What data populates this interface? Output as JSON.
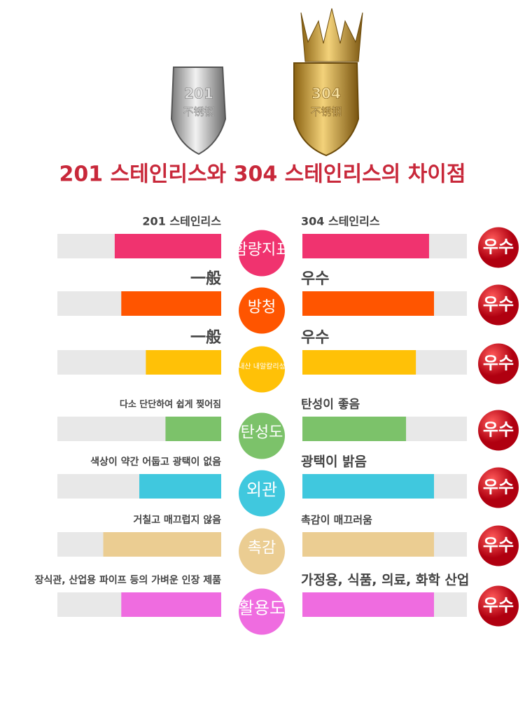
{
  "shields": [
    {
      "number": "201",
      "text": "不锈钢"
    },
    {
      "number": "304",
      "text": "不锈钢"
    }
  ],
  "title": "201 스테인리스와 304 스테인리스의 차이점",
  "rows": [
    {
      "label": "함량지표",
      "left_text": "201 스테인리스",
      "right_text": "304 스테인리스",
      "left_value": 65,
      "right_value": 77,
      "color": "#f0336f",
      "badge": "우수"
    },
    {
      "label": "방청",
      "left_text": "一般",
      "right_text": "우수",
      "left_value": 61,
      "right_value": 80,
      "color": "#ff5500",
      "badge": "우수"
    },
    {
      "label": "내산 내알칼리성",
      "left_text": "一般",
      "right_text": "우수",
      "left_value": 46,
      "right_value": 69,
      "color": "#ffc107",
      "badge": "우수"
    },
    {
      "label": "탄성도",
      "left_text": "다소 단단하여 쉽게 찢어짐",
      "right_text": "탄성이 좋음",
      "left_value": 34,
      "right_value": 63,
      "color": "#7cc26a",
      "badge": "우수"
    },
    {
      "label": "외관",
      "left_text": "색상이 약간 어둡고 광택이 없음",
      "right_text": "광택이 밝음",
      "left_value": 50,
      "right_value": 80,
      "color": "#40c8de",
      "badge": "우수"
    },
    {
      "label": "촉감",
      "left_text": "거칠고 매끄럽지 않음",
      "right_text": "촉감이 매끄러움",
      "left_value": 72,
      "right_value": 80,
      "color": "#ebcd92",
      "badge": "우수"
    },
    {
      "label": "활용도",
      "left_text": "장식관, 산업용 파이프 등의 가벼운 인장 제품",
      "right_text": "가정용, 식품, 의료, 화학 산업",
      "left_value": 61,
      "right_value": 80,
      "color": "#ef6ce0",
      "badge": "우수"
    }
  ]
}
